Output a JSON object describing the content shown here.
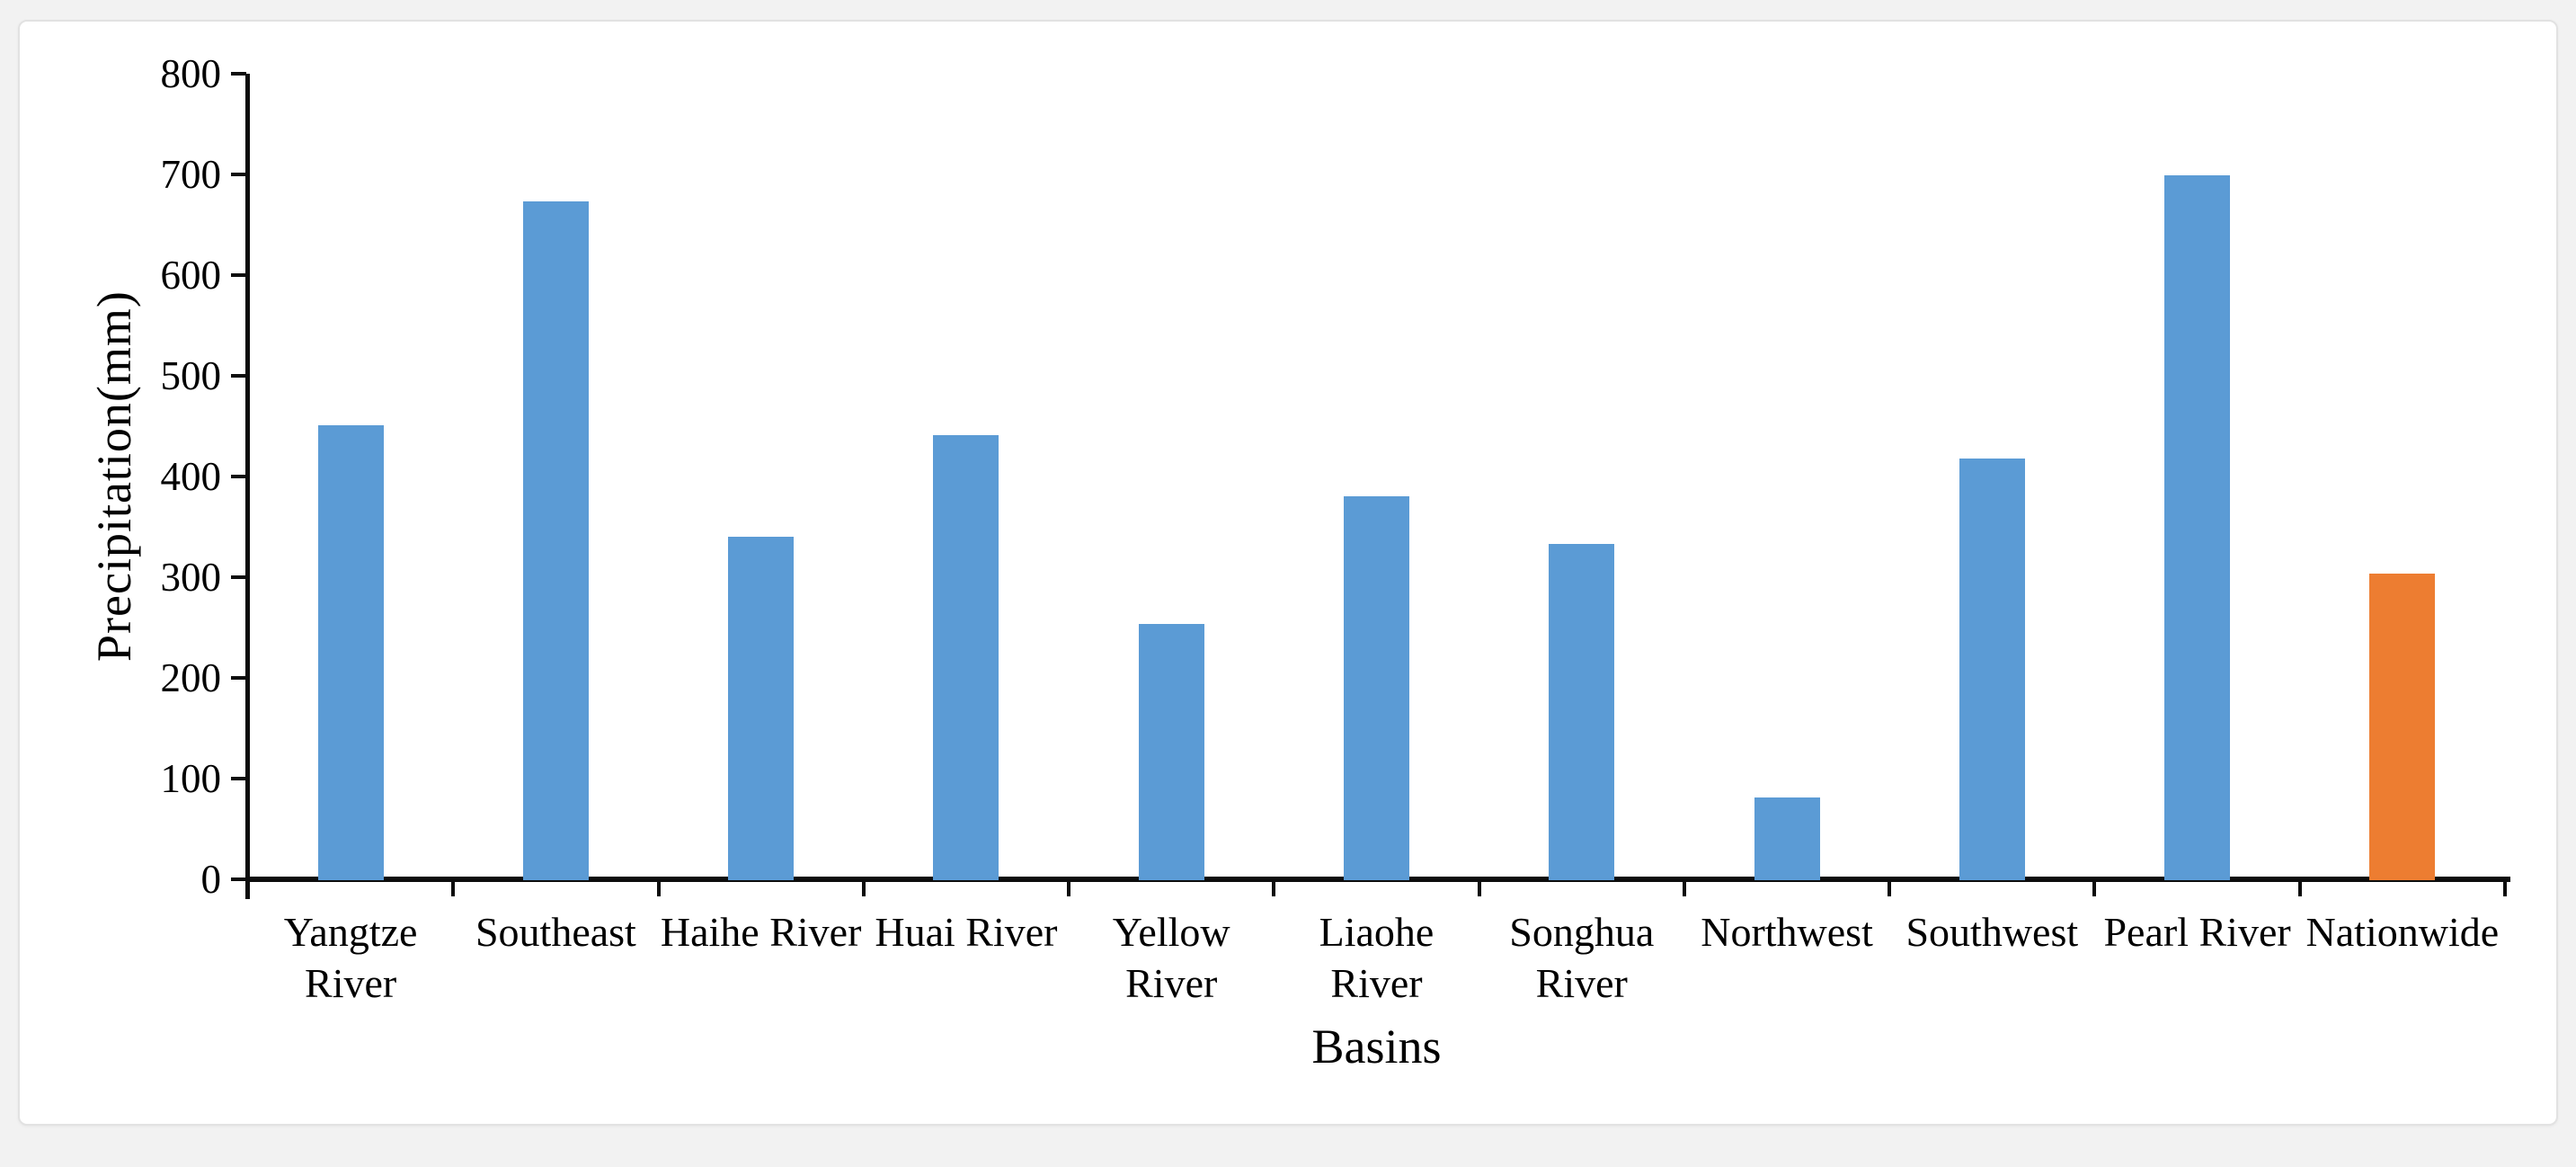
{
  "chart_data": {
    "type": "bar",
    "title": "",
    "xlabel": "Basins",
    "ylabel": "Precipitation(mm)",
    "ylim": [
      0,
      800
    ],
    "yticks": [
      0,
      100,
      200,
      300,
      400,
      500,
      600,
      700,
      800
    ],
    "grid": false,
    "legend_position": "none",
    "categories": [
      "Yangtze River",
      "Southeast",
      "Haihe River",
      "Huai River",
      "Yellow River",
      "Liaohe River",
      "Songhua River",
      "Northwest",
      "Southwest",
      "Pearl River",
      "Nationwide"
    ],
    "category_label_lines": [
      [
        "Yangtze",
        "River"
      ],
      [
        "Southeast"
      ],
      [
        "Haihe River"
      ],
      [
        "Huai River"
      ],
      [
        "Yellow",
        "River"
      ],
      [
        "Liaohe",
        "River"
      ],
      [
        "Songhua",
        "River"
      ],
      [
        "Northwest"
      ],
      [
        "Southwest"
      ],
      [
        "Pearl River"
      ],
      [
        "Nationwide"
      ]
    ],
    "values": [
      451,
      673,
      340,
      441,
      254,
      380,
      333,
      81,
      418,
      699,
      304
    ],
    "bar_colors": [
      "#5B9BD5",
      "#5B9BD5",
      "#5B9BD5",
      "#5B9BD5",
      "#5B9BD5",
      "#5B9BD5",
      "#5B9BD5",
      "#5B9BD5",
      "#5B9BD5",
      "#5B9BD5",
      "#ED7D31"
    ],
    "colors": {
      "bar_default": "#5B9BD5",
      "bar_highlight": "#ED7D31",
      "axis": "#0d0d0d",
      "text": "#000000"
    }
  }
}
